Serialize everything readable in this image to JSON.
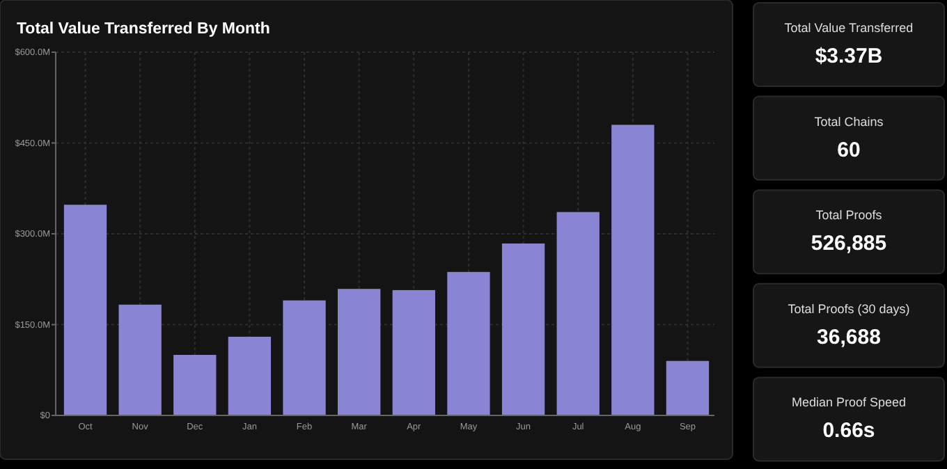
{
  "chart_data": [
    {
      "type": "bar",
      "title": "Total Value Transferred By Month",
      "categories": [
        "Oct",
        "Nov",
        "Dec",
        "Jan",
        "Feb",
        "Mar",
        "Apr",
        "May",
        "Jun",
        "Jul",
        "Aug",
        "Sep"
      ],
      "values": [
        348,
        183,
        100,
        130,
        190,
        209,
        207,
        237,
        284,
        336,
        480,
        90
      ],
      "color": "#8a84d4",
      "ylim": [
        0,
        600
      ],
      "yticks": [
        {
          "value": 0,
          "label": "$0"
        },
        {
          "value": 150,
          "label": "$150.0M"
        },
        {
          "value": 300,
          "label": "$300.0M"
        },
        {
          "value": 450,
          "label": "$450.0M"
        },
        {
          "value": 600,
          "label": "$600.0M"
        }
      ],
      "grid": true
    },
    {
      "type": "other",
      "annotations": [
        "Total Value Transferred",
        "$3.37B",
        "Total Chains",
        "60",
        "Total Proofs",
        "526,885",
        "Total Proofs (30 days)",
        "36,688",
        "Median Proof Speed",
        "0.66s"
      ]
    }
  ]
}
